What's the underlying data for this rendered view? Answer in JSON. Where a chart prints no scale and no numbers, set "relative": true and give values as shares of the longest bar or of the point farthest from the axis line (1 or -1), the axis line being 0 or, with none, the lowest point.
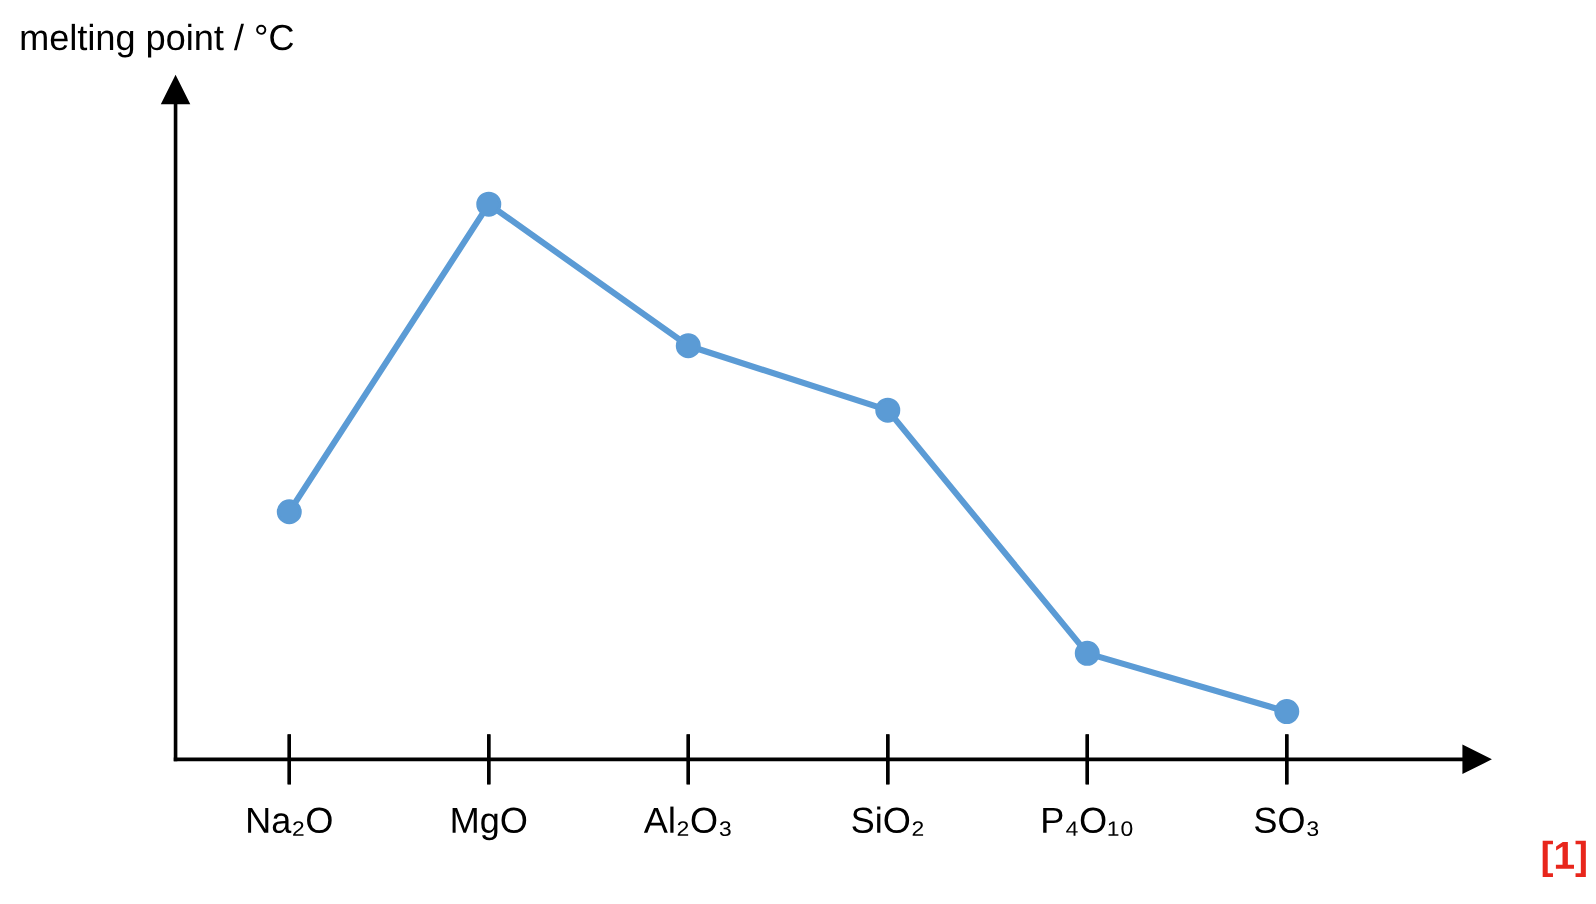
{
  "chart_data": {
    "type": "line",
    "relative": true,
    "ylabel": "melting point / °C",
    "categories": [
      "Na₂O",
      "MgO",
      "Al₂O₃",
      "SiO₂",
      "P₄O₁₀",
      "SO₃"
    ],
    "series": [
      {
        "color": "#5b9bd5",
        "values": [
          0.446,
          1,
          0.745,
          0.629,
          0.191,
          0.086
        ]
      }
    ],
    "marker": "circle",
    "line_style": "solid",
    "grid": false,
    "legend": false,
    "annotations": [
      "[1]"
    ]
  }
}
